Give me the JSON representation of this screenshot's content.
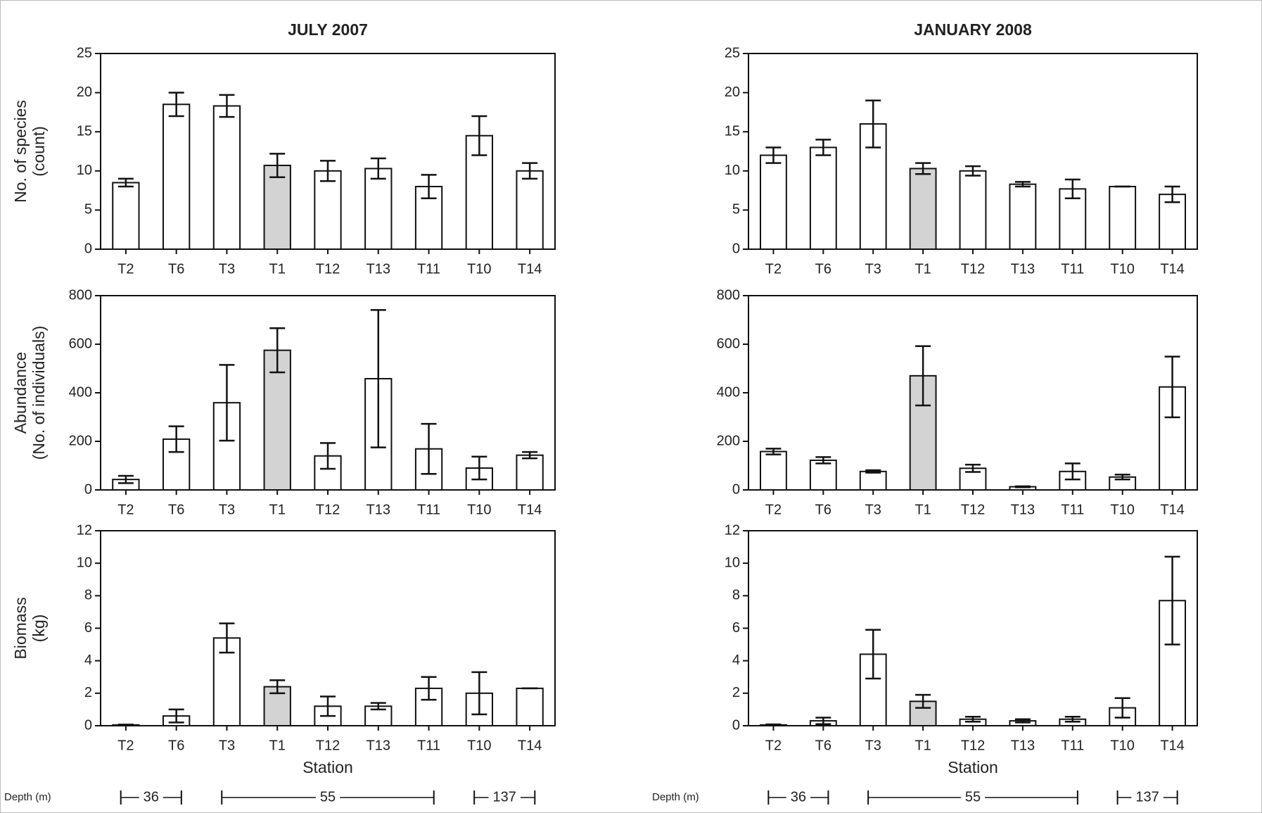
{
  "chart_data": [
    {
      "type": "bar",
      "title": "JULY 2007",
      "ylabel": [
        "No. of species",
        "(count)"
      ],
      "categories": [
        "T2",
        "T6",
        "T3",
        "T1",
        "T12",
        "T13",
        "T11",
        "T10",
        "T14"
      ],
      "values": [
        8.5,
        18.5,
        18.3,
        10.7,
        10,
        10.3,
        8,
        14.5,
        10
      ],
      "errors": [
        0.5,
        1.5,
        1.4,
        1.5,
        1.3,
        1.3,
        1.5,
        2.5,
        1
      ],
      "colors": [
        "#ffffff",
        "#ffffff",
        "#ffffff",
        "#d3d3d3",
        "#ffffff",
        "#ffffff",
        "#ffffff",
        "#ffffff",
        "#ffffff"
      ],
      "ylim": [
        0,
        25
      ],
      "yticks": [
        0,
        5,
        10,
        15,
        20,
        25
      ]
    },
    {
      "type": "bar",
      "ylabel": [
        "Abundance",
        "(No. of individuals)"
      ],
      "categories": [
        "T2",
        "T6",
        "T3",
        "T1",
        "T12",
        "T13",
        "T11",
        "T10",
        "T14"
      ],
      "values": [
        43,
        209,
        359,
        575,
        140,
        458,
        169,
        90,
        143
      ],
      "errors": [
        15,
        53,
        156,
        91,
        53,
        283,
        103,
        47,
        13
      ],
      "colors": [
        "#ffffff",
        "#ffffff",
        "#ffffff",
        "#d3d3d3",
        "#ffffff",
        "#ffffff",
        "#ffffff",
        "#ffffff",
        "#ffffff"
      ],
      "ylim": [
        0,
        800
      ],
      "yticks": [
        0,
        200,
        400,
        600,
        800
      ]
    },
    {
      "type": "bar",
      "ylabel": [
        "Biomass",
        "(kg)"
      ],
      "xlabel": "Station",
      "categories": [
        "T2",
        "T6",
        "T3",
        "T1",
        "T12",
        "T13",
        "T11",
        "T10",
        "T14"
      ],
      "values": [
        0.05,
        0.6,
        5.4,
        2.4,
        1.2,
        1.2,
        2.3,
        2.0,
        2.3
      ],
      "errors": [
        0.02,
        0.4,
        0.9,
        0.4,
        0.6,
        0.2,
        0.7,
        1.3,
        0
      ],
      "colors": [
        "#ffffff",
        "#ffffff",
        "#ffffff",
        "#d3d3d3",
        "#ffffff",
        "#ffffff",
        "#ffffff",
        "#ffffff",
        "#ffffff"
      ],
      "ylim": [
        0,
        12
      ],
      "yticks": [
        0,
        2,
        4,
        6,
        8,
        10,
        12
      ],
      "depth_label": "Depth (m)",
      "depths": [
        36,
        55,
        137
      ]
    },
    {
      "type": "bar",
      "title": "JANUARY 2008",
      "categories": [
        "T2",
        "T6",
        "T3",
        "T1",
        "T12",
        "T13",
        "T11",
        "T10",
        "T14"
      ],
      "values": [
        12,
        13,
        16,
        10.3,
        10,
        8.3,
        7.7,
        8,
        7
      ],
      "errors": [
        1,
        1,
        3,
        0.7,
        0.6,
        0.3,
        1.2,
        0,
        1
      ],
      "colors": [
        "#ffffff",
        "#ffffff",
        "#ffffff",
        "#d3d3d3",
        "#ffffff",
        "#ffffff",
        "#ffffff",
        "#ffffff",
        "#ffffff"
      ],
      "ylim": [
        0,
        25
      ],
      "yticks": [
        0,
        5,
        10,
        15,
        20,
        25
      ]
    },
    {
      "type": "bar",
      "categories": [
        "T2",
        "T6",
        "T3",
        "T1",
        "T12",
        "T13",
        "T11",
        "T10",
        "T14"
      ],
      "values": [
        158,
        122,
        76,
        470,
        89,
        13,
        76,
        53,
        424
      ],
      "errors": [
        12,
        13,
        5,
        122,
        15,
        2,
        33,
        10,
        125
      ],
      "colors": [
        "#ffffff",
        "#ffffff",
        "#ffffff",
        "#d3d3d3",
        "#ffffff",
        "#ffffff",
        "#ffffff",
        "#ffffff",
        "#ffffff"
      ],
      "ylim": [
        0,
        800
      ],
      "yticks": [
        0,
        200,
        400,
        600,
        800
      ]
    },
    {
      "type": "bar",
      "xlabel": "Station",
      "categories": [
        "T2",
        "T6",
        "T3",
        "T1",
        "T12",
        "T13",
        "T11",
        "T10",
        "T14"
      ],
      "values": [
        0.05,
        0.3,
        4.4,
        1.5,
        0.4,
        0.3,
        0.4,
        1.1,
        7.7
      ],
      "errors": [
        0.03,
        0.2,
        1.5,
        0.4,
        0.15,
        0.1,
        0.15,
        0.6,
        2.7
      ],
      "colors": [
        "#ffffff",
        "#ffffff",
        "#ffffff",
        "#d3d3d3",
        "#ffffff",
        "#ffffff",
        "#ffffff",
        "#ffffff",
        "#ffffff"
      ],
      "ylim": [
        0,
        12
      ],
      "yticks": [
        0,
        2,
        4,
        6,
        8,
        10,
        12
      ],
      "depth_label": "Depth (m)",
      "depths": [
        36,
        55,
        137
      ]
    }
  ]
}
